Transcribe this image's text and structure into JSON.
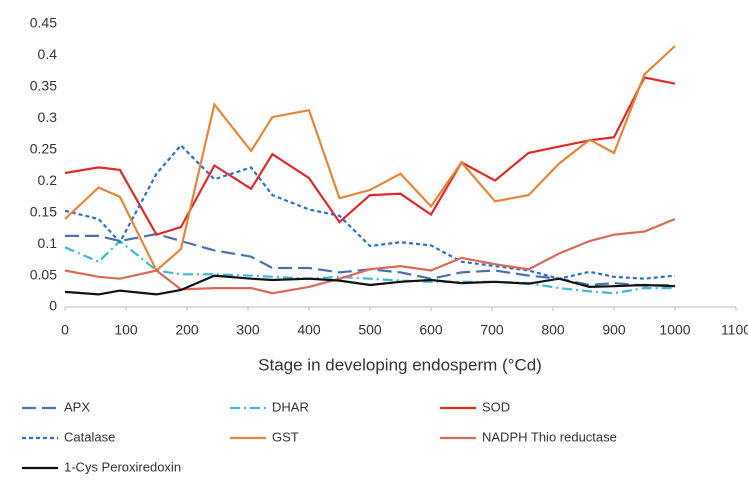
{
  "chart_data": {
    "type": "line",
    "x_label": "Stage in developing endosperm (°Cd)",
    "x": [
      0,
      55,
      90,
      150,
      190,
      245,
      305,
      340,
      400,
      450,
      500,
      550,
      600,
      650,
      705,
      760,
      810,
      860,
      900,
      950,
      1000
    ],
    "xlim": [
      0,
      1100
    ],
    "xticks": [
      0,
      100,
      200,
      300,
      400,
      500,
      600,
      700,
      800,
      900,
      1000,
      1100
    ],
    "ylim": [
      0,
      0.45
    ],
    "yticks": [
      0,
      0.05,
      0.1,
      0.15,
      0.2,
      0.25,
      0.3,
      0.35,
      0.4,
      0.45
    ],
    "legend": "bottom",
    "series": [
      {
        "name": "APX",
        "color": "#4a6fb0",
        "dash": "long-dash",
        "values": [
          0.113,
          0.113,
          0.105,
          0.116,
          0.105,
          0.09,
          0.08,
          0.062,
          0.062,
          0.055,
          0.06,
          0.055,
          0.045,
          0.055,
          0.058,
          0.05,
          0.045,
          0.035,
          0.038,
          0.034,
          0.035
        ]
      },
      {
        "name": "DHAR",
        "color": "#3fb7d6",
        "dash": "dash-dot",
        "values": [
          0.095,
          0.072,
          0.105,
          0.058,
          0.052,
          0.052,
          0.05,
          0.048,
          0.045,
          0.048,
          0.045,
          0.042,
          0.04,
          0.04,
          0.04,
          0.038,
          0.03,
          0.025,
          0.022,
          0.03,
          0.03
        ]
      },
      {
        "name": "SOD",
        "color": "#e02a2a",
        "dash": "solid",
        "values": [
          0.213,
          0.222,
          0.218,
          0.115,
          0.127,
          0.225,
          0.188,
          0.243,
          0.205,
          0.135,
          0.178,
          0.18,
          0.147,
          0.23,
          0.201,
          0.245,
          0.255,
          0.265,
          0.27,
          0.365,
          0.355
        ]
      },
      {
        "name": "Catalase",
        "color": "#2e6fc4",
        "dash": "short-dash",
        "values": [
          0.153,
          0.14,
          0.103,
          0.212,
          0.257,
          0.203,
          0.222,
          0.178,
          0.155,
          0.145,
          0.097,
          0.103,
          0.098,
          0.072,
          0.065,
          0.058,
          0.045,
          0.056,
          0.048,
          0.045,
          0.05
        ]
      },
      {
        "name": "GST",
        "color": "#e4853a",
        "dash": "solid",
        "values": [
          0.14,
          0.19,
          0.175,
          0.058,
          0.092,
          0.322,
          0.248,
          0.302,
          0.313,
          0.173,
          0.186,
          0.212,
          0.16,
          0.23,
          0.168,
          0.178,
          0.228,
          0.266,
          0.245,
          0.37,
          0.415
        ]
      },
      {
        "name": "NADPH Thio reductase",
        "color": "#d9695a",
        "dash": "solid",
        "values": [
          0.058,
          0.048,
          0.045,
          0.058,
          0.028,
          0.03,
          0.03,
          0.022,
          0.032,
          0.045,
          0.06,
          0.065,
          0.058,
          0.078,
          0.068,
          0.06,
          0.085,
          0.105,
          0.115,
          0.12,
          0.14
        ]
      },
      {
        "name": "1-Cys Peroxiredoxin",
        "color": "#111111",
        "dash": "solid",
        "values": [
          0.024,
          0.02,
          0.026,
          0.02,
          0.027,
          0.05,
          0.045,
          0.043,
          0.045,
          0.042,
          0.035,
          0.04,
          0.043,
          0.038,
          0.04,
          0.037,
          0.045,
          0.032,
          0.033,
          0.035,
          0.033
        ]
      }
    ]
  }
}
